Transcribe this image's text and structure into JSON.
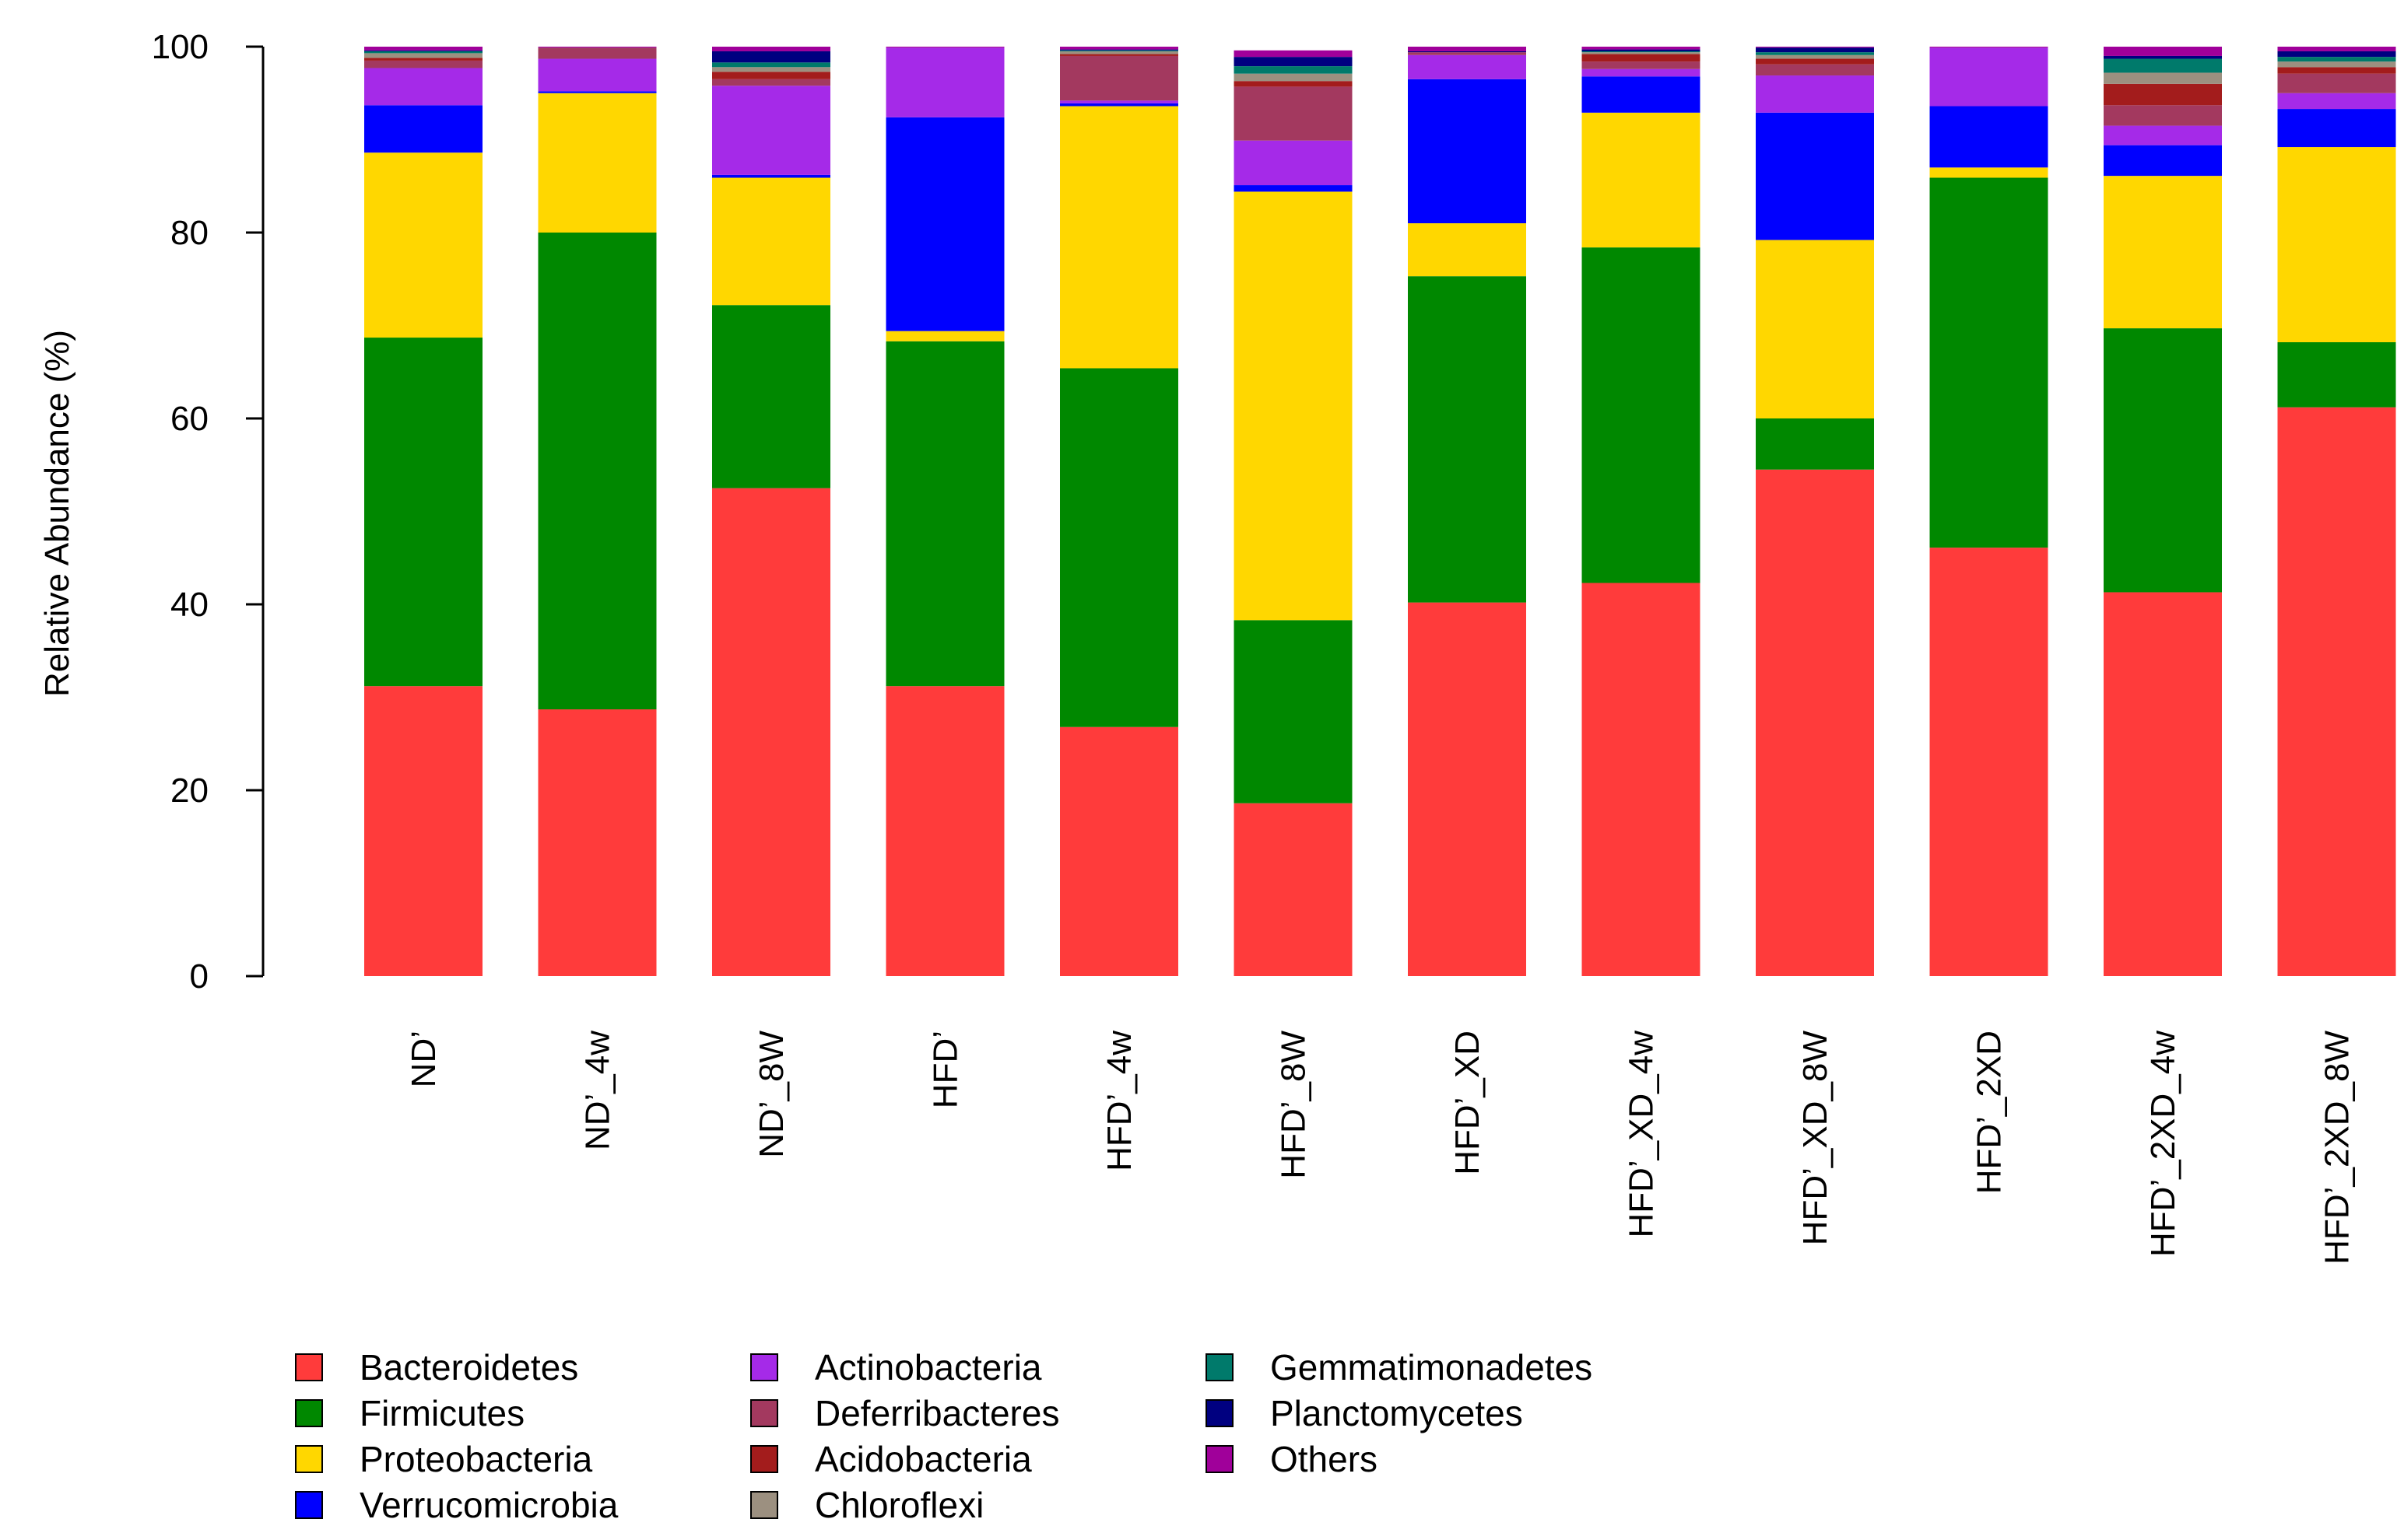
{
  "chart_data": {
    "type": "bar",
    "stacked": true,
    "title": "",
    "xlabel": "",
    "ylabel": "Relative Abundance (%)",
    "ylim": [
      0,
      100
    ],
    "yticks": [
      0,
      20,
      40,
      60,
      80,
      100
    ],
    "categories": [
      "ND’",
      "ND’_4w",
      "ND’_8W",
      "HFD’",
      "HFD’_4w",
      "HFD’_8W",
      "HFD’_XD",
      "HFD’_XD_4w",
      "HFD’_XD_8W",
      "HFD’_2XD",
      "HFD’_2XD_4w",
      "HFD’_2XD_8W"
    ],
    "series": [
      {
        "name": "Bacteroidetes",
        "color": "#FF3B3B",
        "values": [
          31.2,
          28.7,
          52.5,
          31.2,
          26.8,
          18.6,
          40.2,
          42.3,
          54.5,
          46.1,
          41.3,
          61.2
        ]
      },
      {
        "name": "Firmicutes",
        "color": "#008800",
        "values": [
          37.5,
          51.3,
          19.7,
          37.1,
          38.6,
          19.7,
          35.1,
          36.1,
          5.5,
          39.8,
          28.4,
          7.0
        ]
      },
      {
        "name": "Proteobacteria",
        "color": "#FFD700",
        "values": [
          19.9,
          15.0,
          13.7,
          1.1,
          28.2,
          46.1,
          5.7,
          14.5,
          19.2,
          1.1,
          16.4,
          21.0
        ]
      },
      {
        "name": "Verrucomicrobia",
        "color": "#0000FF",
        "values": [
          5.1,
          0.2,
          0.3,
          23.0,
          0.3,
          0.7,
          15.5,
          3.9,
          13.7,
          6.6,
          3.3,
          4.1
        ]
      },
      {
        "name": "Actinobacteria",
        "color": "#A52AE8",
        "values": [
          4.0,
          3.5,
          9.6,
          7.5,
          0.3,
          4.8,
          2.6,
          0.8,
          4.0,
          6.3,
          2.1,
          1.7
        ]
      },
      {
        "name": "Deferribacteres",
        "color": "#A3395F",
        "values": [
          0.8,
          1.2,
          0.7,
          0.0,
          4.8,
          5.8,
          0.3,
          0.8,
          1.2,
          0.0,
          2.2,
          2.1
        ]
      },
      {
        "name": "Acidobacteria",
        "color": "#A31C1C",
        "values": [
          0.3,
          0.0,
          0.8,
          0.0,
          0.2,
          0.6,
          0.0,
          0.8,
          0.6,
          0.0,
          2.3,
          0.7
        ]
      },
      {
        "name": "Chloroflexi",
        "color": "#9C9080",
        "values": [
          0.5,
          0.0,
          0.5,
          0.0,
          0.3,
          0.8,
          0.0,
          0.2,
          0.4,
          0.0,
          1.2,
          0.6
        ]
      },
      {
        "name": "Gemmatimonadetes",
        "color": "#007A6B",
        "values": [
          0.2,
          0.0,
          0.5,
          0.0,
          0.1,
          0.8,
          0.0,
          0.1,
          0.3,
          0.0,
          1.5,
          0.5
        ]
      },
      {
        "name": "Planctomycetes",
        "color": "#000080",
        "values": [
          0.1,
          0.0,
          1.2,
          0.0,
          0.1,
          1.0,
          0.1,
          0.2,
          0.5,
          0.0,
          0.3,
          0.6
        ]
      },
      {
        "name": "Others",
        "color": "#A0009A",
        "values": [
          0.4,
          0.1,
          0.5,
          0.1,
          0.3,
          0.7,
          0.5,
          0.3,
          0.1,
          0.1,
          1.0,
          0.5
        ]
      }
    ],
    "legend_position": "bottom-left",
    "legend_columns": 3
  }
}
